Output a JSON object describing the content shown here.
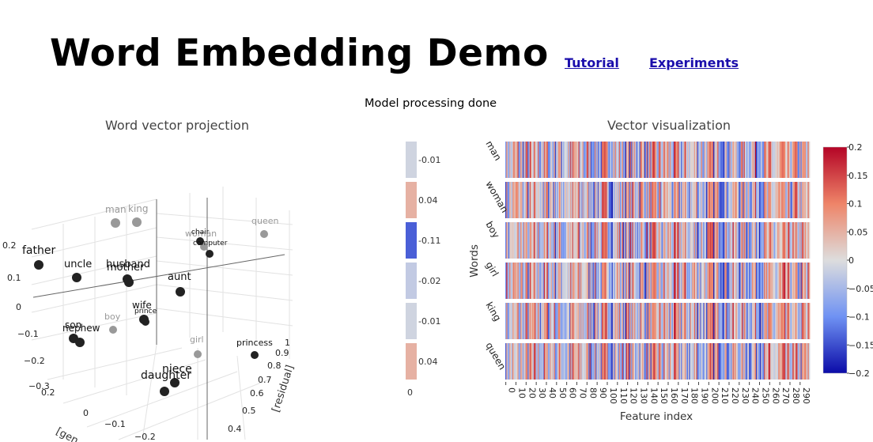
{
  "header": {
    "title": "Word Embedding Demo",
    "links": [
      "Tutorial",
      "Experiments"
    ]
  },
  "status": "Model processing done",
  "chart_data": [
    {
      "type": "scatter",
      "title": "Word vector projection",
      "dimensions": 3,
      "axis_labels": [
        "[gen",
        "[residual]"
      ],
      "y_ticks": [
        "0.2",
        "0.1",
        "0",
        "−0.1",
        "−0.2",
        "−0.3"
      ],
      "x_ticks": [
        "0.2",
        "0",
        "−0.1",
        "−0.2"
      ],
      "residual_ticks": [
        "1",
        "0.9",
        "0.8",
        "0.7",
        "0.6",
        "0.5",
        "0.4"
      ],
      "points": [
        {
          "word": "man",
          "color": "#999999"
        },
        {
          "word": "king",
          "color": "#999999"
        },
        {
          "word": "queen",
          "color": "#999999"
        },
        {
          "word": "woman",
          "color": "#999999"
        },
        {
          "word": "chair",
          "color": "#222222"
        },
        {
          "word": "computer",
          "color": "#222222"
        },
        {
          "word": "father",
          "color": "#222222"
        },
        {
          "word": "uncle",
          "color": "#222222"
        },
        {
          "word": "husband",
          "color": "#222222"
        },
        {
          "word": "mother",
          "color": "#222222"
        },
        {
          "word": "aunt",
          "color": "#222222"
        },
        {
          "word": "wife",
          "color": "#222222"
        },
        {
          "word": "prince",
          "color": "#222222"
        },
        {
          "word": "boy",
          "color": "#999999"
        },
        {
          "word": "son",
          "color": "#222222"
        },
        {
          "word": "nephew",
          "color": "#222222"
        },
        {
          "word": "girl",
          "color": "#999999"
        },
        {
          "word": "princess",
          "color": "#222222"
        },
        {
          "word": "niece",
          "color": "#222222"
        },
        {
          "word": "daughter",
          "color": "#222222"
        }
      ]
    },
    {
      "type": "heatmap",
      "title": "Vector visualization",
      "cells": [
        -0.01,
        0.04,
        -0.11,
        -0.02,
        -0.01,
        0.04
      ],
      "x_ticks": [
        "0"
      ]
    },
    {
      "type": "heatmap",
      "title": "Vector visualization",
      "xlabel": "Feature index",
      "ylabel": "Words",
      "rows": [
        "man",
        "woman",
        "boy",
        "girl",
        "king",
        "queen"
      ],
      "features": 300,
      "x_ticks": [
        0,
        10,
        20,
        30,
        40,
        50,
        60,
        70,
        80,
        90,
        100,
        110,
        120,
        130,
        140,
        150,
        160,
        170,
        180,
        190,
        200,
        210,
        220,
        230,
        240,
        250,
        260,
        270,
        280,
        290
      ],
      "colorscale": {
        "min": -0.2,
        "max": 0.2,
        "ticks": [
          "0.2",
          "0.15",
          "0.1",
          "0.05",
          "0",
          "−0.05",
          "−0.1",
          "−0.15",
          "−0.2"
        ]
      },
      "colors": {
        "low": "#0b0ba8",
        "mid": "#dddddd",
        "high": "#b40426"
      }
    }
  ]
}
